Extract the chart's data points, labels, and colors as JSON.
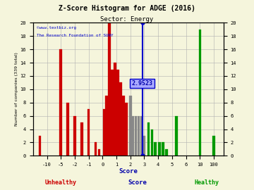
{
  "title": "Z-Score Histogram for ADGE (2016)",
  "subtitle": "Sector: Energy",
  "watermark1": "©www.textbiz.org",
  "watermark2": "The Research Foundation of SUNY",
  "xlabel": "Score",
  "ylabel": "Number of companies (339 total)",
  "z_score_label": "2.9523",
  "background_color": "#f5f5dc",
  "grid_color": "#b0b0b0",
  "unhealthy_color": "#cc0000",
  "gray_color": "#888888",
  "healthy_color": "#009900",
  "blue_line_color": "#0000cc",
  "annotation_bg": "#aaaaff",
  "annotation_text_color": "#0000aa",
  "title_color": "#000000",
  "watermark_color": "#0000cc",
  "xlabel_color": "#0000aa",
  "unhealthy_label_color": "#cc0000",
  "healthy_label_color": "#009900",
  "tick_labels": [
    "-10",
    "-5",
    "-2",
    "-1",
    "0",
    "1",
    "2",
    "3",
    "4",
    "5",
    "6",
    "10",
    "100"
  ],
  "tick_screen": [
    1,
    2,
    3,
    4,
    5,
    6,
    7,
    8,
    9,
    10,
    11,
    12,
    13
  ],
  "bars": [
    {
      "xs": 0.5,
      "height": 3,
      "color": "#cc0000"
    },
    {
      "xs": 2,
      "height": 16,
      "color": "#cc0000"
    },
    {
      "xs": 2.5,
      "height": 8,
      "color": "#cc0000"
    },
    {
      "xs": 3,
      "height": 6,
      "color": "#cc0000"
    },
    {
      "xs": 3.5,
      "height": 5,
      "color": "#cc0000"
    },
    {
      "xs": 4,
      "height": 7,
      "color": "#cc0000"
    },
    {
      "xs": 4.5,
      "height": 2,
      "color": "#cc0000"
    },
    {
      "xs": 4.75,
      "height": 1,
      "color": "#cc0000"
    },
    {
      "xs": 5.1,
      "height": 7,
      "color": "#cc0000"
    },
    {
      "xs": 5.3,
      "height": 9,
      "color": "#cc0000"
    },
    {
      "xs": 5.5,
      "height": 20,
      "color": "#cc0000"
    },
    {
      "xs": 5.7,
      "height": 13,
      "color": "#cc0000"
    },
    {
      "xs": 5.9,
      "height": 14,
      "color": "#cc0000"
    },
    {
      "xs": 6.1,
      "height": 13,
      "color": "#cc0000"
    },
    {
      "xs": 6.3,
      "height": 11,
      "color": "#cc0000"
    },
    {
      "xs": 6.5,
      "height": 9,
      "color": "#cc0000"
    },
    {
      "xs": 6.7,
      "height": 8,
      "color": "#cc0000"
    },
    {
      "xs": 7.0,
      "height": 9,
      "color": "#888888"
    },
    {
      "xs": 7.2,
      "height": 6,
      "color": "#888888"
    },
    {
      "xs": 7.4,
      "height": 6,
      "color": "#888888"
    },
    {
      "xs": 7.6,
      "height": 6,
      "color": "#888888"
    },
    {
      "xs": 7.8,
      "height": 6,
      "color": "#888888"
    },
    {
      "xs": 8.0,
      "height": 3,
      "color": "#888888"
    },
    {
      "xs": 8.3,
      "height": 5,
      "color": "#009900"
    },
    {
      "xs": 8.55,
      "height": 4,
      "color": "#009900"
    },
    {
      "xs": 8.8,
      "height": 2,
      "color": "#009900"
    },
    {
      "xs": 9.1,
      "height": 2,
      "color": "#009900"
    },
    {
      "xs": 9.35,
      "height": 2,
      "color": "#009900"
    },
    {
      "xs": 9.6,
      "height": 1,
      "color": "#009900"
    },
    {
      "xs": 10.3,
      "height": 6,
      "color": "#009900"
    },
    {
      "xs": 12,
      "height": 19,
      "color": "#009900"
    },
    {
      "xs": 13,
      "height": 3,
      "color": "#009900"
    }
  ],
  "bar_width": 0.18,
  "z_line_x": 7.9,
  "z_line_top": 20,
  "z_line_hbar_y1": 11.5,
  "z_line_hbar_y2": 10.3,
  "z_ann_x": 7.85,
  "z_ann_y": 10.9,
  "xlim": [
    0.0,
    13.7
  ],
  "ylim": [
    0,
    20
  ]
}
